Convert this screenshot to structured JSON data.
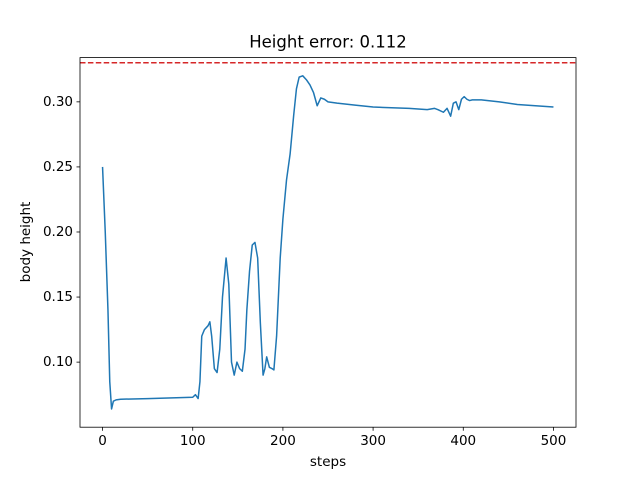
{
  "chart_data": {
    "type": "line",
    "title": "Height error: 0.112",
    "xlabel": "steps",
    "ylabel": "body height",
    "x": [
      0,
      3,
      6,
      8,
      10,
      12,
      15,
      20,
      50,
      100,
      103,
      106,
      108,
      110,
      113,
      117,
      119,
      121,
      124,
      127,
      130,
      133,
      137,
      140,
      143,
      146,
      149,
      152,
      155,
      158,
      160,
      163,
      166,
      169,
      172,
      175,
      178,
      180,
      182,
      185,
      188,
      190,
      193,
      197,
      200,
      204,
      208,
      212,
      215,
      218,
      222,
      226,
      230,
      234,
      238,
      242,
      246,
      250,
      260,
      280,
      300,
      340,
      360,
      368,
      372,
      378,
      382,
      386,
      389,
      392,
      395,
      398,
      401,
      404,
      407,
      410,
      420,
      440,
      460,
      480,
      500
    ],
    "values": [
      0.25,
      0.2,
      0.14,
      0.085,
      0.064,
      0.07,
      0.071,
      0.0715,
      0.072,
      0.073,
      0.075,
      0.072,
      0.085,
      0.12,
      0.125,
      0.128,
      0.131,
      0.12,
      0.095,
      0.092,
      0.11,
      0.15,
      0.18,
      0.16,
      0.1,
      0.09,
      0.1,
      0.095,
      0.093,
      0.11,
      0.14,
      0.17,
      0.19,
      0.192,
      0.18,
      0.13,
      0.09,
      0.095,
      0.104,
      0.096,
      0.095,
      0.094,
      0.12,
      0.18,
      0.21,
      0.24,
      0.26,
      0.29,
      0.31,
      0.319,
      0.32,
      0.317,
      0.313,
      0.307,
      0.297,
      0.303,
      0.302,
      0.3,
      0.299,
      0.2975,
      0.296,
      0.295,
      0.294,
      0.295,
      0.294,
      0.292,
      0.295,
      0.289,
      0.299,
      0.3,
      0.294,
      0.302,
      0.304,
      0.302,
      0.301,
      0.3015,
      0.3015,
      0.3,
      0.298,
      0.297,
      0.296
    ],
    "color": "#1f77b4",
    "hline": {
      "value": 0.33,
      "color": "#d62728",
      "style": "dashed"
    },
    "xlim": [
      -25,
      525
    ],
    "xticks": [
      0,
      100,
      200,
      300,
      400,
      500
    ],
    "ylim": [
      0.05,
      0.334
    ],
    "yticks": [
      {
        "value": 0.1,
        "label": "0.10"
      },
      0.15,
      {
        "value": 0.2,
        "label": "0.20"
      },
      0.25,
      {
        "value": 0.3,
        "label": "0.30"
      }
    ],
    "grid": false
  }
}
